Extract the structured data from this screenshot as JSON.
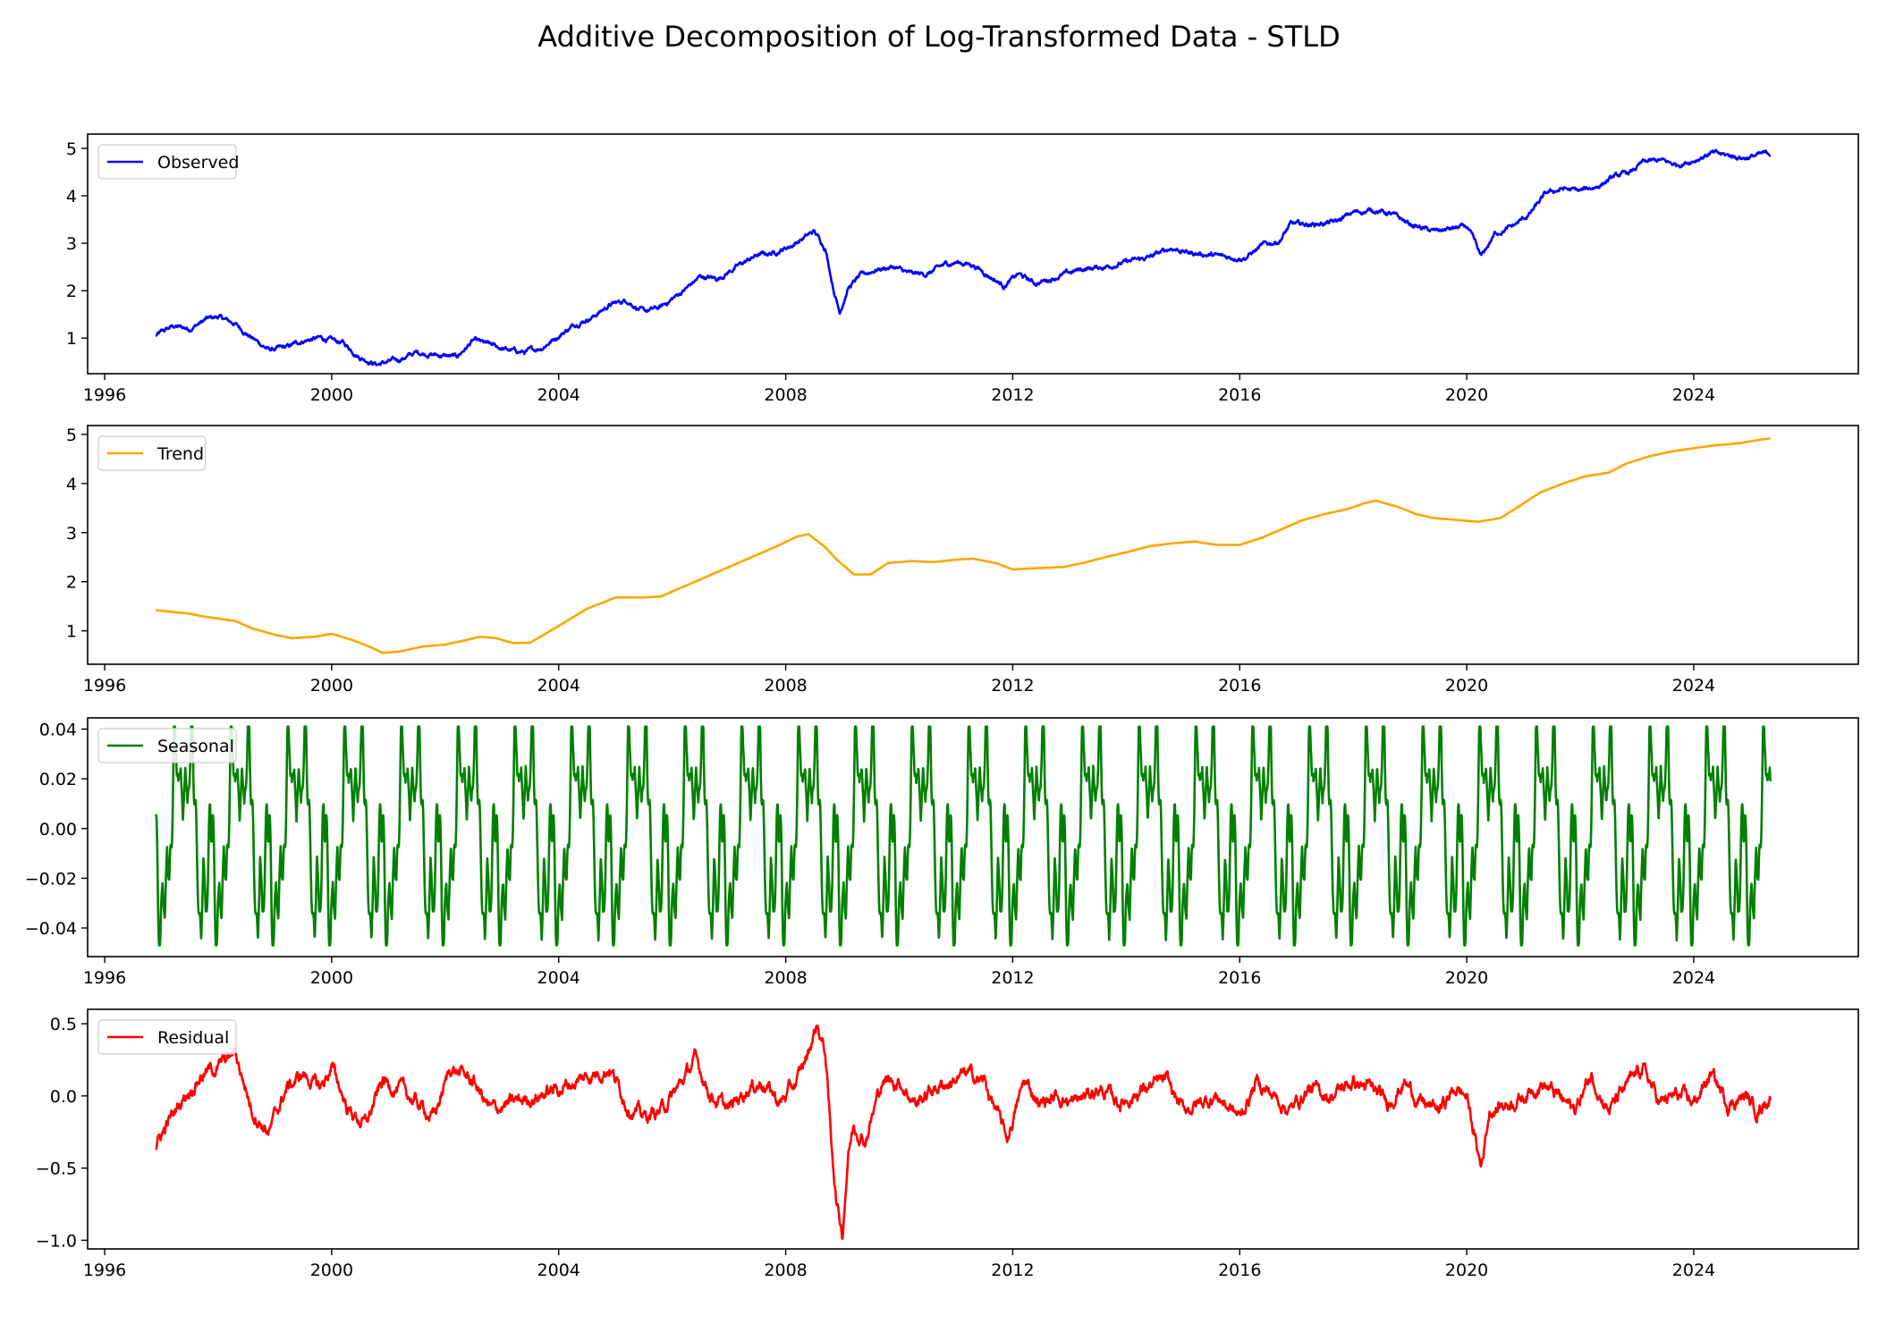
{
  "figure": {
    "title": "Additive Decomposition of Log-Transformed Data - STLD"
  },
  "chart_data": [
    {
      "type": "line",
      "title": "",
      "xlabel": "",
      "ylabel": "",
      "xlim": [
        1995.7,
        2026.9
      ],
      "ylim": [
        0.25,
        5.3
      ],
      "x_ticks": [
        1996,
        2000,
        2004,
        2008,
        2012,
        2016,
        2020,
        2024
      ],
      "y_ticks": [
        {
          "v": 1,
          "label": "1"
        },
        {
          "v": 2,
          "label": "2"
        },
        {
          "v": 3,
          "label": "3"
        },
        {
          "v": 4,
          "label": "4"
        },
        {
          "v": 5,
          "label": "5"
        }
      ],
      "legend": {
        "position": "upper-left"
      },
      "grid": false,
      "series": [
        {
          "name": "Observed",
          "color": "#0000ff",
          "noise": 0.06,
          "x": [
            1996.9,
            1997.2,
            1997.5,
            1997.8,
            1998.0,
            1998.3,
            1998.6,
            1998.9,
            1999.2,
            1999.5,
            1999.8,
            2000.2,
            2000.5,
            2000.8,
            2001.2,
            2001.5,
            2001.8,
            2002.2,
            2002.5,
            2002.8,
            2003.1,
            2003.4,
            2003.7,
            2004.0,
            2004.3,
            2004.6,
            2004.9,
            2005.2,
            2005.5,
            2005.8,
            2006.2,
            2006.5,
            2006.8,
            2007.2,
            2007.5,
            2007.8,
            2008.1,
            2008.3,
            2008.5,
            2008.7,
            2008.85,
            2008.95,
            2009.1,
            2009.3,
            2009.6,
            2009.9,
            2010.2,
            2010.5,
            2010.8,
            2011.0,
            2011.3,
            2011.6,
            2011.85,
            2012.1,
            2012.4,
            2012.8,
            2013.2,
            2013.6,
            2014.0,
            2014.4,
            2014.8,
            2015.1,
            2015.5,
            2015.8,
            2016.1,
            2016.4,
            2016.7,
            2016.9,
            2017.3,
            2017.7,
            2018.0,
            2018.4,
            2018.7,
            2019.0,
            2019.4,
            2019.7,
            2020.0,
            2020.15,
            2020.25,
            2020.5,
            2020.8,
            2021.1,
            2021.4,
            2021.7,
            2022.0,
            2022.3,
            2022.6,
            2022.9,
            2023.1,
            2023.4,
            2023.7,
            2024.0,
            2024.3,
            2024.6,
            2024.9,
            2025.1,
            2025.35
          ],
          "y": [
            1.05,
            1.25,
            1.2,
            1.4,
            1.45,
            1.3,
            1.0,
            0.75,
            0.8,
            0.95,
            1.0,
            0.9,
            0.6,
            0.45,
            0.55,
            0.7,
            0.65,
            0.6,
            0.95,
            0.85,
            0.75,
            0.7,
            0.8,
            1.05,
            1.3,
            1.45,
            1.7,
            1.8,
            1.55,
            1.65,
            2.0,
            2.3,
            2.25,
            2.55,
            2.75,
            2.8,
            2.95,
            3.1,
            3.25,
            2.9,
            2.0,
            1.55,
            2.05,
            2.3,
            2.45,
            2.5,
            2.35,
            2.35,
            2.55,
            2.6,
            2.55,
            2.3,
            2.1,
            2.35,
            2.15,
            2.3,
            2.45,
            2.5,
            2.6,
            2.7,
            2.9,
            2.8,
            2.75,
            2.7,
            2.7,
            2.95,
            3.05,
            3.4,
            3.4,
            3.45,
            3.65,
            3.7,
            3.6,
            3.4,
            3.25,
            3.3,
            3.35,
            3.0,
            2.7,
            3.2,
            3.35,
            3.6,
            4.05,
            4.15,
            4.1,
            4.2,
            4.4,
            4.5,
            4.7,
            4.75,
            4.65,
            4.75,
            4.9,
            4.85,
            4.8,
            4.85,
            4.9
          ]
        }
      ]
    },
    {
      "type": "line",
      "title": "",
      "xlabel": "",
      "ylabel": "",
      "xlim": [
        1995.7,
        2026.9
      ],
      "ylim": [
        0.32,
        5.18
      ],
      "x_ticks": [
        1996,
        2000,
        2004,
        2008,
        2012,
        2016,
        2020,
        2024
      ],
      "y_ticks": [
        {
          "v": 1,
          "label": "1"
        },
        {
          "v": 2,
          "label": "2"
        },
        {
          "v": 3,
          "label": "3"
        },
        {
          "v": 4,
          "label": "4"
        },
        {
          "v": 5,
          "label": "5"
        }
      ],
      "legend": {
        "position": "upper-left"
      },
      "grid": false,
      "series": [
        {
          "name": "Trend",
          "color": "#ffa500",
          "noise": 0,
          "x": [
            1996.9,
            1997.5,
            1997.7,
            1998.0,
            1998.3,
            1998.6,
            1999.0,
            1999.3,
            1999.7,
            2000.0,
            2000.4,
            2000.7,
            2000.9,
            2001.2,
            2001.6,
            2002.0,
            2002.4,
            2002.6,
            2002.9,
            2003.2,
            2003.5,
            2004.0,
            2004.5,
            2005.0,
            2005.5,
            2005.8,
            2006.3,
            2006.8,
            2007.3,
            2007.8,
            2008.2,
            2008.4,
            2008.7,
            2008.9,
            2009.2,
            2009.5,
            2009.8,
            2010.2,
            2010.6,
            2011.0,
            2011.3,
            2011.7,
            2012.0,
            2012.5,
            2012.9,
            2013.3,
            2013.7,
            2014.0,
            2014.4,
            2014.8,
            2015.2,
            2015.6,
            2016.0,
            2016.4,
            2016.7,
            2017.1,
            2017.5,
            2017.9,
            2018.2,
            2018.4,
            2018.8,
            2019.1,
            2019.4,
            2019.6,
            2019.9,
            2020.2,
            2020.6,
            2020.9,
            2021.3,
            2021.7,
            2022.1,
            2022.5,
            2022.8,
            2023.2,
            2023.6,
            2024.0,
            2024.4,
            2024.8,
            2025.1,
            2025.35
          ],
          "y": [
            1.42,
            1.35,
            1.3,
            1.25,
            1.2,
            1.05,
            0.92,
            0.85,
            0.88,
            0.94,
            0.8,
            0.66,
            0.55,
            0.58,
            0.68,
            0.72,
            0.82,
            0.88,
            0.85,
            0.75,
            0.76,
            1.1,
            1.45,
            1.68,
            1.68,
            1.7,
            1.95,
            2.2,
            2.45,
            2.7,
            2.92,
            2.97,
            2.7,
            2.45,
            2.15,
            2.15,
            2.38,
            2.42,
            2.4,
            2.45,
            2.47,
            2.38,
            2.25,
            2.28,
            2.3,
            2.4,
            2.52,
            2.6,
            2.72,
            2.78,
            2.82,
            2.75,
            2.75,
            2.9,
            3.05,
            3.25,
            3.38,
            3.48,
            3.6,
            3.65,
            3.52,
            3.38,
            3.3,
            3.28,
            3.25,
            3.22,
            3.3,
            3.52,
            3.82,
            4.0,
            4.15,
            4.22,
            4.4,
            4.55,
            4.65,
            4.72,
            4.78,
            4.82,
            4.88,
            4.92
          ]
        }
      ]
    },
    {
      "type": "line",
      "title": "",
      "xlabel": "",
      "ylabel": "",
      "xlim": [
        1995.7,
        2026.9
      ],
      "ylim": [
        -0.0515,
        0.0445
      ],
      "x_ticks": [
        1996,
        2000,
        2004,
        2008,
        2012,
        2016,
        2020,
        2024
      ],
      "y_ticks": [
        {
          "v": -0.04,
          "label": "−0.04"
        },
        {
          "v": -0.02,
          "label": "−0.02"
        },
        {
          "v": 0.0,
          "label": "0.00"
        },
        {
          "v": 0.02,
          "label": "0.02"
        },
        {
          "v": 0.04,
          "label": "0.04"
        }
      ],
      "legend": {
        "position": "upper-left"
      },
      "grid": false,
      "series": [
        {
          "name": "Seasonal",
          "color": "#008000",
          "period_years": 1,
          "x_range": [
            1996.9,
            2025.35
          ],
          "pattern_phase": [
            0.0,
            0.04,
            0.08,
            0.12,
            0.16,
            0.2,
            0.24,
            0.28,
            0.32,
            0.36,
            0.4,
            0.44,
            0.48,
            0.52,
            0.56,
            0.6,
            0.64,
            0.68,
            0.72,
            0.76,
            0.8,
            0.84,
            0.88,
            0.92,
            0.96,
            1.0
          ],
          "pattern_value": [
            0.005,
            -0.03,
            -0.047,
            -0.02,
            -0.038,
            -0.005,
            -0.025,
            0.0,
            0.03,
            0.04,
            0.01,
            0.03,
            0.0,
            0.028,
            0.005,
            0.03,
            0.041,
            0.02,
            -0.01,
            -0.03,
            -0.047,
            -0.01,
            -0.035,
            -0.02,
            0.008,
            0.005
          ]
        }
      ]
    },
    {
      "type": "line",
      "title": "",
      "xlabel": "",
      "ylabel": "",
      "xlim": [
        1995.7,
        2026.9
      ],
      "ylim": [
        -1.06,
        0.6
      ],
      "x_ticks": [
        1996,
        2000,
        2004,
        2008,
        2012,
        2016,
        2020,
        2024
      ],
      "y_ticks": [
        {
          "v": -1.0,
          "label": "−1.0"
        },
        {
          "v": -0.5,
          "label": "−0.5"
        },
        {
          "v": 0.0,
          "label": "0.0"
        },
        {
          "v": 0.5,
          "label": "0.5"
        }
      ],
      "legend": {
        "position": "upper-left"
      },
      "grid": false,
      "series": [
        {
          "name": "Residual",
          "color": "#ff0000",
          "noise": 0.06,
          "x": [
            1996.9,
            1997.1,
            1997.4,
            1997.7,
            1998.0,
            1998.3,
            1998.6,
            1998.9,
            1999.2,
            1999.5,
            1999.8,
            2000.0,
            2000.3,
            2000.6,
            2000.9,
            2001.2,
            2001.5,
            2001.8,
            2002.1,
            2002.5,
            2002.8,
            2003.2,
            2003.6,
            2004.0,
            2004.3,
            2004.6,
            2004.9,
            2005.2,
            2005.5,
            2005.8,
            2006.1,
            2006.4,
            2006.7,
            2007.0,
            2007.3,
            2007.6,
            2007.9,
            2008.2,
            2008.4,
            2008.55,
            2008.7,
            2008.8,
            2008.9,
            2009.0,
            2009.1,
            2009.2,
            2009.4,
            2009.7,
            2010.0,
            2010.3,
            2010.6,
            2010.9,
            2011.2,
            2011.5,
            2011.75,
            2011.9,
            2012.2,
            2012.5,
            2012.8,
            2013.1,
            2013.5,
            2013.9,
            2014.3,
            2014.7,
            2015.0,
            2015.3,
            2015.6,
            2016.0,
            2016.3,
            2016.6,
            2016.9,
            2017.2,
            2017.6,
            2018.0,
            2018.3,
            2018.6,
            2018.9,
            2019.2,
            2019.5,
            2019.8,
            2020.0,
            2020.15,
            2020.25,
            2020.4,
            2020.7,
            2021.0,
            2021.3,
            2021.6,
            2021.9,
            2022.2,
            2022.5,
            2022.8,
            2023.1,
            2023.4,
            2023.7,
            2024.0,
            2024.3,
            2024.6,
            2024.9,
            2025.1,
            2025.35
          ],
          "y": [
            -0.35,
            -0.2,
            0.0,
            0.15,
            0.2,
            0.3,
            -0.1,
            -0.25,
            0.05,
            0.15,
            0.05,
            0.2,
            -0.1,
            -0.2,
            0.1,
            0.05,
            -0.05,
            -0.15,
            0.2,
            0.1,
            -0.1,
            -0.05,
            0.0,
            0.05,
            0.1,
            0.15,
            0.2,
            -0.05,
            -0.15,
            -0.1,
            0.05,
            0.25,
            0.0,
            -0.1,
            0.05,
            0.1,
            -0.05,
            0.1,
            0.3,
            0.5,
            0.3,
            -0.3,
            -0.75,
            -0.95,
            -0.4,
            -0.2,
            -0.3,
            0.1,
            0.1,
            -0.05,
            0.05,
            0.1,
            0.15,
            0.1,
            -0.15,
            -0.3,
            0.1,
            -0.05,
            0.0,
            -0.05,
            0.05,
            -0.05,
            0.05,
            0.1,
            -0.1,
            -0.05,
            0.0,
            -0.15,
            0.1,
            0.0,
            -0.1,
            0.05,
            0.0,
            0.1,
            0.05,
            -0.05,
            0.1,
            -0.05,
            -0.1,
            0.05,
            0.0,
            -0.3,
            -0.5,
            -0.1,
            -0.05,
            0.0,
            0.1,
            0.0,
            -0.1,
            0.15,
            -0.1,
            0.05,
            0.2,
            -0.05,
            0.0,
            -0.05,
            0.15,
            -0.05,
            0.0,
            -0.1,
            0.0
          ]
        }
      ]
    }
  ]
}
